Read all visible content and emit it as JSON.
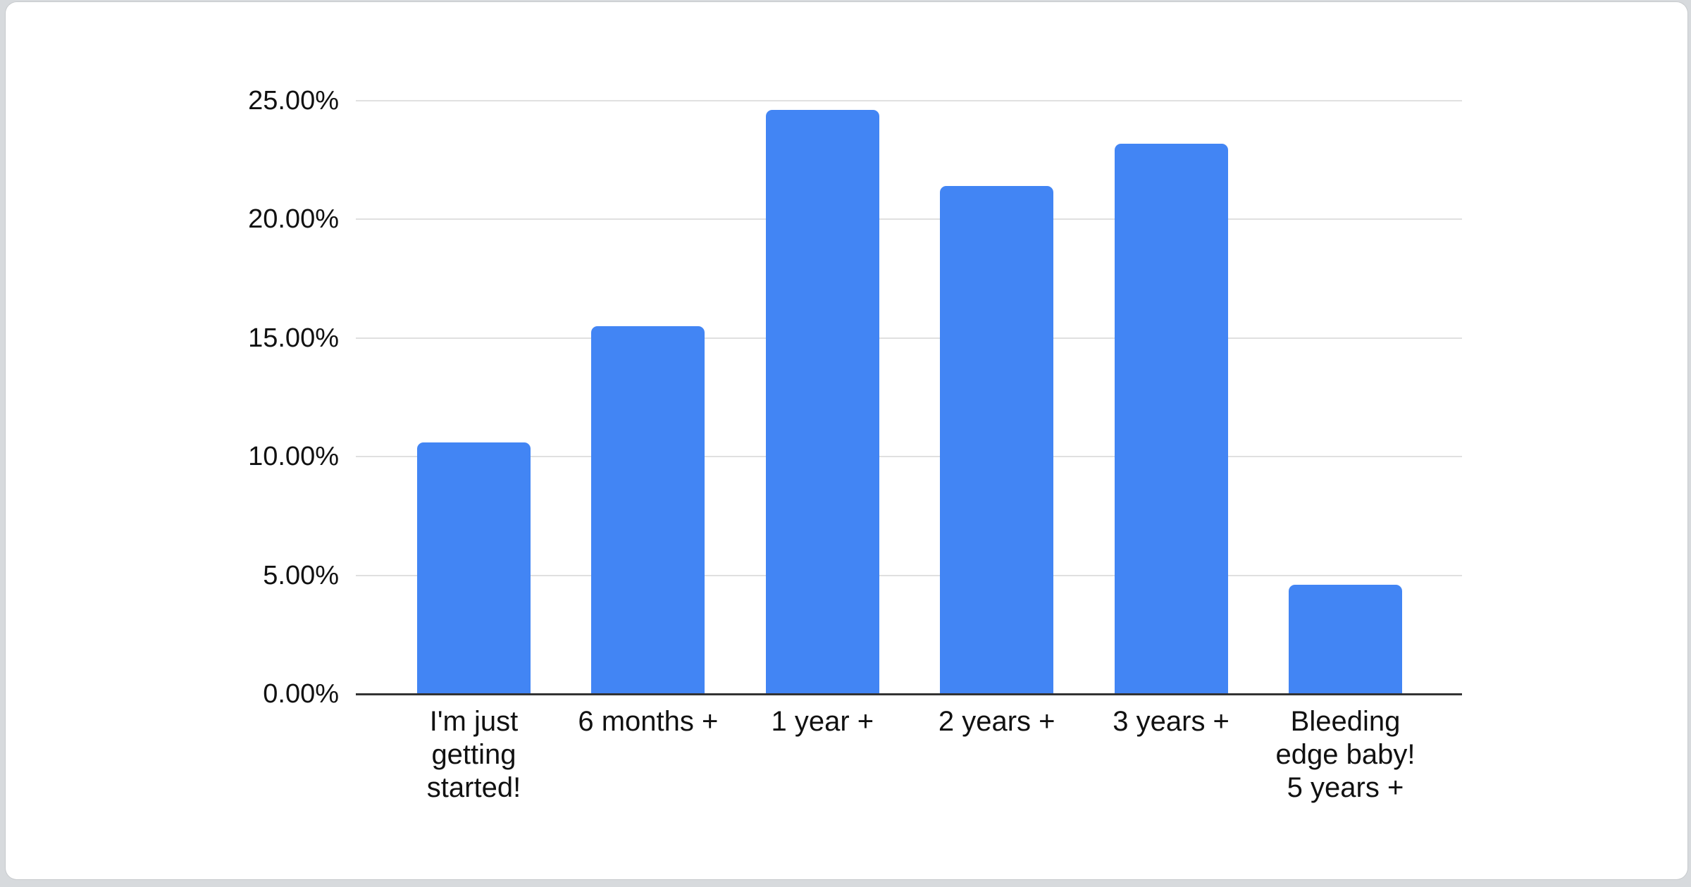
{
  "page": {
    "background_color": "#d7dadd",
    "card_color": "#ffffff"
  },
  "chart_data": {
    "type": "bar",
    "title": "",
    "xlabel": "",
    "ylabel": "",
    "categories": [
      "I'm just getting started!",
      "6 months +",
      "1 year +",
      "2 years +",
      "3 years +",
      "Bleeding edge baby! 5 years +"
    ],
    "category_label_lines": [
      [
        "I'm just",
        "getting",
        "started!"
      ],
      [
        "6 months +"
      ],
      [
        "1 year +"
      ],
      [
        "2 years +"
      ],
      [
        "3 years +"
      ],
      [
        "Bleeding",
        "edge baby!",
        "5 years +"
      ]
    ],
    "values": [
      10.6,
      15.5,
      24.6,
      21.4,
      23.2,
      4.6
    ],
    "value_unit": "%",
    "y_axis": {
      "min": 0,
      "max": 25,
      "step": 5,
      "ticks": [
        {
          "value": 0,
          "label": "0.00%"
        },
        {
          "value": 5,
          "label": "5.00%"
        },
        {
          "value": 10,
          "label": "10.00%"
        },
        {
          "value": 15,
          "label": "15.00%"
        },
        {
          "value": 20,
          "label": "20.00%"
        },
        {
          "value": 25,
          "label": "25.00%"
        }
      ]
    },
    "grid": true,
    "legend_position": "none",
    "colors": {
      "bar": "#4285f4",
      "gridline": "#e0e0e0",
      "axis_line": "#333333",
      "label_text": "#111111"
    }
  }
}
